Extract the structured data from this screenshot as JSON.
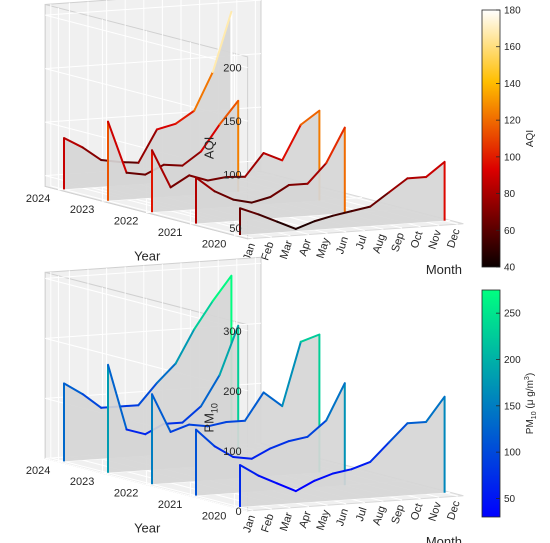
{
  "chart_data": [
    {
      "type": "waterfall-3d",
      "title": "",
      "xlabel": "Month",
      "ylabel": "Year",
      "zlabel": "AQI",
      "months": [
        "Jan",
        "Feb",
        "Mar",
        "Apr",
        "May",
        "Jun",
        "Jul",
        "Aug",
        "Sep",
        "Oct",
        "Nov",
        "Dec"
      ],
      "years": [
        "2020",
        "2021",
        "2022",
        "2023",
        "2024"
      ],
      "zlim": [
        40,
        210
      ],
      "zticks": [
        50,
        100,
        150,
        200
      ],
      "colorbar": {
        "ticks": [
          40,
          60,
          80,
          100,
          120,
          140,
          160,
          180
        ],
        "range": [
          40,
          180
        ],
        "label": "AQI",
        "colormap": "hot"
      },
      "series": [
        {
          "year": "2020",
          "values": [
            65,
            58,
            50,
            42,
            48,
            52,
            55,
            58,
            70,
            82,
            82,
            95
          ]
        },
        {
          "year": "2021",
          "values": [
            83,
            69,
            60,
            56,
            60,
            70,
            70,
            88,
            120,
            null,
            null,
            null
          ]
        },
        {
          "year": "2022",
          "values": [
            98,
            62,
            72,
            66,
            68,
            67,
            88,
            80,
            112,
            124,
            null,
            null
          ]
        },
        {
          "year": "2023",
          "values": [
            114,
            65,
            62,
            70,
            68,
            80,
            104,
            125,
            null,
            null,
            null,
            null
          ]
        },
        {
          "year": "2024",
          "values": [
            88,
            78,
            65,
            62,
            60,
            90,
            94,
            105,
            140,
            195,
            null,
            null
          ]
        }
      ]
    },
    {
      "type": "waterfall-3d",
      "title": "",
      "xlabel": "Month",
      "ylabel": "Year",
      "zlabel": "PM",
      "zlabel_sub": "10",
      "months": [
        "Jan",
        "Feb",
        "Mar",
        "Apr",
        "May",
        "Jun",
        "Jul",
        "Aug",
        "Sep",
        "Oct",
        "Nov",
        "Dec"
      ],
      "years": [
        "2020",
        "2021",
        "2022",
        "2023",
        "2024"
      ],
      "zlim": [
        0,
        310
      ],
      "zticks": [
        0,
        100,
        200,
        300
      ],
      "colorbar": {
        "ticks": [
          50,
          100,
          150,
          200,
          250
        ],
        "range": [
          30,
          275
        ],
        "label": "PM",
        "label_sub": "10",
        "label_unit": "(μ g/m",
        "label_sup": "3",
        "label_end": ")",
        "colormap": "winter"
      },
      "series": [
        {
          "year": "2020",
          "values": [
            70,
            50,
            35,
            20,
            35,
            45,
            50,
            60,
            90,
            120,
            120,
            160
          ]
        },
        {
          "year": "2021",
          "values": [
            110,
            80,
            60,
            55,
            70,
            80,
            85,
            110,
            170,
            null,
            null,
            null
          ]
        },
        {
          "year": "2022",
          "values": [
            150,
            85,
            95,
            90,
            95,
            95,
            140,
            115,
            220,
            230,
            null,
            null
          ]
        },
        {
          "year": "2023",
          "values": [
            180,
            70,
            60,
            75,
            75,
            100,
            150,
            230,
            null,
            null,
            null,
            null
          ]
        },
        {
          "year": "2024",
          "values": [
            130,
            110,
            85,
            85,
            85,
            120,
            150,
            205,
            250,
            290,
            null,
            null
          ]
        }
      ]
    }
  ]
}
